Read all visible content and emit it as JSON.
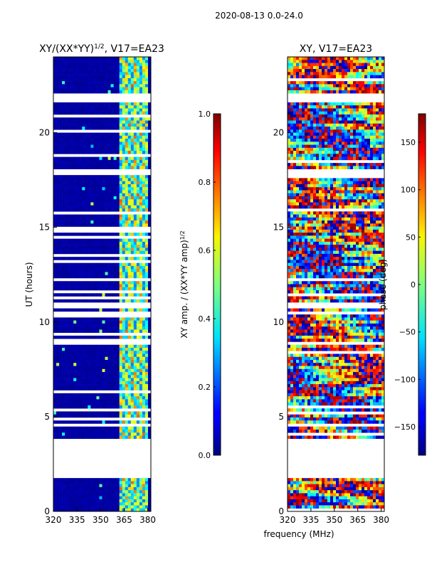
{
  "figure": {
    "suptitle": "2020-08-13 0.0-24.0",
    "xlabel": "frequency (MHz)"
  },
  "chart_data": [
    {
      "type": "heatmap",
      "id": "amp",
      "title_main": "XY/(XX*YY)",
      "title_sup": "1/2",
      "title_tail": ", V17=EA23",
      "ylabel": "UT (hours)",
      "xlim": [
        320,
        382
      ],
      "ylim": [
        0,
        24
      ],
      "xticks": [
        320,
        335,
        350,
        365,
        380
      ],
      "yticks": [
        0,
        5,
        10,
        15,
        20
      ],
      "colorbar": {
        "label_main": "XY amp. / (XX*YY amp)",
        "label_sup": "1/2",
        "range": [
          0,
          1
        ],
        "ticks": [
          "0.0",
          "0.2",
          "0.4",
          "0.6",
          "0.8",
          "1.0"
        ],
        "colormap": "jet"
      },
      "gap_bands_ut": [
        [
          1.7,
          3.85
        ],
        [
          10.8,
          11.05
        ],
        [
          21.6,
          22.0
        ],
        [
          17.8,
          18.1
        ]
      ],
      "bright_band_mhz": [
        362,
        380
      ]
    },
    {
      "type": "heatmap",
      "id": "phase",
      "title_main": "XY",
      "title_tail": ", V17=EA23",
      "ylabel": "",
      "xlim": [
        320,
        382
      ],
      "ylim": [
        0,
        24
      ],
      "xticks": [
        320,
        335,
        350,
        365,
        380
      ],
      "yticks": [
        0,
        5,
        10,
        15,
        20
      ],
      "colorbar": {
        "label_main": "phase (deg)",
        "range": [
          -180,
          180
        ],
        "ticks": [
          "-150",
          "-100",
          "-50",
          "0",
          "50",
          "100",
          "150"
        ],
        "tick_values": [
          -150,
          -100,
          -50,
          0,
          50,
          100,
          150
        ],
        "colormap": "jet"
      },
      "gap_bands_ut": [
        [
          1.7,
          3.85
        ],
        [
          10.8,
          11.05
        ],
        [
          21.6,
          22.0
        ],
        [
          17.8,
          18.1
        ]
      ]
    }
  ]
}
